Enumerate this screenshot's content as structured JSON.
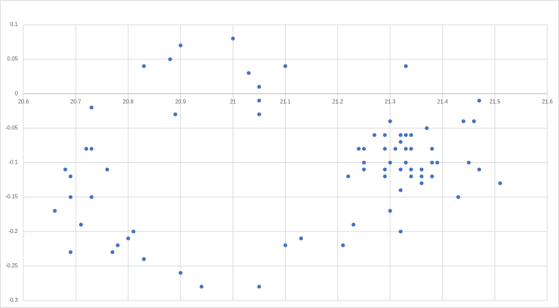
{
  "chart_data": {
    "type": "scatter",
    "color": "#4472c4",
    "grid": true,
    "xlim": [
      20.6,
      21.6
    ],
    "xticks": [
      20.6,
      20.7,
      20.8,
      20.9,
      21,
      21.1,
      21.2,
      21.3,
      21.4,
      21.5,
      21.6
    ],
    "ylim": [
      -0.3,
      0.1
    ],
    "yticks": [
      0.1,
      0.05,
      0,
      -0.05,
      -0.1,
      -0.15,
      -0.2,
      -0.25,
      -0.3
    ],
    "x": [
      20.66,
      20.68,
      20.69,
      20.69,
      20.69,
      20.71,
      20.72,
      20.73,
      20.73,
      20.73,
      20.76,
      20.77,
      20.78,
      20.8,
      20.81,
      20.83,
      20.83,
      20.88,
      20.89,
      20.9,
      20.9,
      20.94,
      21.0,
      21.03,
      21.05,
      21.05,
      21.05,
      21.05,
      21.1,
      21.1,
      21.13,
      21.21,
      21.22,
      21.23,
      21.24,
      21.25,
      21.25,
      21.25,
      21.27,
      21.29,
      21.29,
      21.29,
      21.29,
      21.3,
      21.3,
      21.3,
      21.31,
      21.32,
      21.32,
      21.32,
      21.32,
      21.32,
      21.33,
      21.33,
      21.33,
      21.33,
      21.34,
      21.34,
      21.34,
      21.34,
      21.36,
      21.36,
      21.36,
      21.37,
      21.38,
      21.38,
      21.38,
      21.39,
      21.43,
      21.44,
      21.45,
      21.46,
      21.47,
      21.47,
      21.51
    ],
    "values": [
      -0.17,
      -0.11,
      -0.12,
      -0.15,
      -0.23,
      -0.19,
      -0.08,
      -0.08,
      -0.02,
      -0.15,
      -0.11,
      -0.23,
      -0.22,
      -0.21,
      -0.2,
      -0.24,
      0.04,
      0.05,
      -0.03,
      0.07,
      -0.26,
      -0.28,
      0.08,
      0.03,
      0.01,
      -0.01,
      -0.03,
      -0.28,
      0.04,
      -0.22,
      -0.21,
      -0.22,
      -0.12,
      -0.19,
      -0.08,
      -0.08,
      -0.1,
      -0.11,
      -0.06,
      -0.06,
      -0.08,
      -0.11,
      -0.12,
      -0.04,
      -0.1,
      -0.17,
      -0.08,
      -0.06,
      -0.07,
      -0.11,
      -0.14,
      -0.2,
      0.04,
      -0.06,
      -0.08,
      -0.1,
      -0.06,
      -0.08,
      -0.11,
      -0.12,
      -0.11,
      -0.12,
      -0.13,
      -0.05,
      -0.08,
      -0.1,
      -0.12,
      -0.1,
      -0.15,
      -0.04,
      -0.1,
      -0.04,
      -0.01,
      -0.11,
      -0.13
    ]
  }
}
